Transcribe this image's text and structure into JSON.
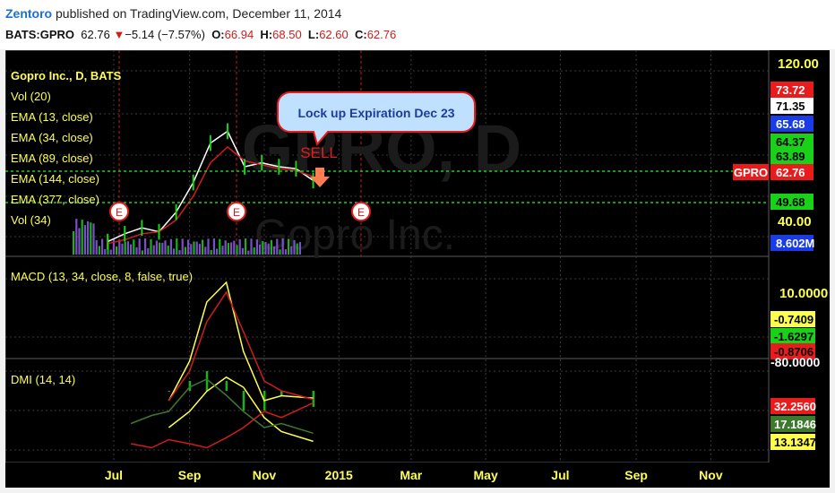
{
  "header": {
    "author": "Zentoro",
    "published": "published on TradingView.com, December 11, 2014",
    "symbol": "BATS:GPRO",
    "last": "62.76",
    "change": "−5.14 (−7.57%)",
    "o_label": "O:",
    "o_value": "66.94",
    "h_label": "H:",
    "h_value": "68.50",
    "l_label": "L:",
    "l_value": "62.60",
    "c_label": "C:",
    "c_value": "62.76"
  },
  "colors": {
    "background": "#000000",
    "grid": "#3a3a3a",
    "ema_fast": "#ffffff",
    "ema_slow": "#d01c1c",
    "macd": "#ffff4d",
    "signal": "#d01c1c",
    "hist_up": "#19b219",
    "dmi_adx": "#ffff4d",
    "dmi_plus": "#3d7a2d",
    "dmi_minus": "#d01c1c",
    "volume": "#7a4fc9"
  },
  "watermark": {
    "symbol": "GPRO, D",
    "name": "Gopro Inc."
  },
  "legend": {
    "title": "Gopro Inc., D, BATS",
    "items": [
      "Vol (20)",
      "EMA (13, close)",
      "EMA (34, close)",
      "EMA (89, close)",
      "EMA (144, close)",
      "EMA (377, close)",
      "Vol (34)"
    ]
  },
  "annotation": {
    "callout": "Lock up Expiration Dec 23",
    "sell": "SELL",
    "earnings_marker": "E"
  },
  "price_axis": {
    "ticks": [
      "120.00",
      "40.00"
    ],
    "labels": [
      {
        "text": "73.72",
        "bg": "#e81c1c",
        "fg": "#ffffff"
      },
      {
        "text": "71.35",
        "bg": "#ffffff",
        "fg": "#000000"
      },
      {
        "text": "65.68",
        "bg": "#1a3ce6",
        "fg": "#ffffff"
      },
      {
        "text": "64.37",
        "bg": "#19d119",
        "fg": "#000000"
      },
      {
        "text": "63.89",
        "bg": "#19d119",
        "fg": "#000000"
      },
      {
        "text": "62.76",
        "bg": "#e81c1c",
        "fg": "#ffffff"
      },
      {
        "text": "49.68",
        "bg": "#19d119",
        "fg": "#000000"
      },
      {
        "text": "8.602M",
        "bg": "#1a3ce6",
        "fg": "#ffffff"
      }
    ],
    "symbol_tag": "GPRO"
  },
  "macd_panel": {
    "title": "MACD (13, 34, close, 8, false, true)",
    "ticks": [
      "10.0000",
      "-80.0000"
    ],
    "labels": [
      {
        "text": "-0.7409",
        "bg": "#ffff4d",
        "fg": "#000000"
      },
      {
        "text": "-1.6297",
        "bg": "#19d119",
        "fg": "#000000"
      },
      {
        "text": "-0.8706",
        "bg": "#e81c1c",
        "fg": "#000000"
      }
    ]
  },
  "dmi_panel": {
    "title": "DMI (14, 14)",
    "labels": [
      {
        "text": "32.2560",
        "bg": "#e81c1c",
        "fg": "#ffffff"
      },
      {
        "text": "17.1846",
        "bg": "#3d7a2d",
        "fg": "#ffffff"
      },
      {
        "text": "13.1347",
        "bg": "#ffff4d",
        "fg": "#000000"
      }
    ]
  },
  "time_axis": {
    "labels": [
      "Jul",
      "Sep",
      "Nov",
      "2015",
      "Mar",
      "May",
      "Jul",
      "Sep",
      "Nov"
    ]
  },
  "chart_data": {
    "type": "line",
    "price_panel": {
      "x": [
        "2014-06-26",
        "2014-07-10",
        "2014-07-24",
        "2014-08-07",
        "2014-08-21",
        "2014-09-04",
        "2014-09-18",
        "2014-10-02",
        "2014-10-16",
        "2014-10-30",
        "2014-11-13",
        "2014-11-27",
        "2014-12-11"
      ],
      "series": [
        {
          "name": "EMA (13, close)",
          "values": [
            32,
            36,
            39,
            37,
            47,
            62,
            82,
            88,
            70,
            72,
            70,
            69,
            63
          ]
        },
        {
          "name": "EMA (34, close)",
          "values": [
            31,
            33,
            36,
            37,
            43,
            55,
            72,
            80,
            73,
            71,
            69,
            68,
            65
          ]
        }
      ],
      "last_close": 62.76,
      "horizontal_levels": [
        62.76,
        49.68
      ]
    },
    "macd": {
      "x": [
        "2014-08-15",
        "2014-09-01",
        "2014-09-15",
        "2014-10-01",
        "2014-10-15",
        "2014-11-01",
        "2014-11-15",
        "2014-12-11"
      ],
      "series": [
        {
          "name": "MACD",
          "values": [
            -1,
            3,
            9,
            11,
            4,
            -1,
            -0.5,
            -0.7409
          ]
        },
        {
          "name": "Signal",
          "values": [
            -1,
            2,
            7,
            10,
            6,
            1,
            0,
            -0.8706
          ]
        },
        {
          "name": "Histogram",
          "values": [
            0,
            1,
            2,
            1,
            -2,
            -2,
            -0.5,
            -1.6297
          ]
        }
      ]
    },
    "dmi": {
      "x": [
        "2014-07-15",
        "2014-08-01",
        "2014-08-15",
        "2014-09-01",
        "2014-09-15",
        "2014-10-01",
        "2014-10-15",
        "2014-11-01",
        "2014-11-15",
        "2014-12-11"
      ],
      "series": [
        {
          "name": "ADX",
          "values": [
            null,
            null,
            20,
            28,
            38,
            45,
            40,
            25,
            18,
            13.1347
          ]
        },
        {
          "name": "+DI",
          "values": [
            22,
            26,
            28,
            40,
            44,
            36,
            28,
            20,
            22,
            17.1846
          ]
        },
        {
          "name": "-DI",
          "values": [
            12,
            10,
            14,
            12,
            10,
            15,
            20,
            28,
            25,
            32.256
          ]
        }
      ]
    }
  }
}
